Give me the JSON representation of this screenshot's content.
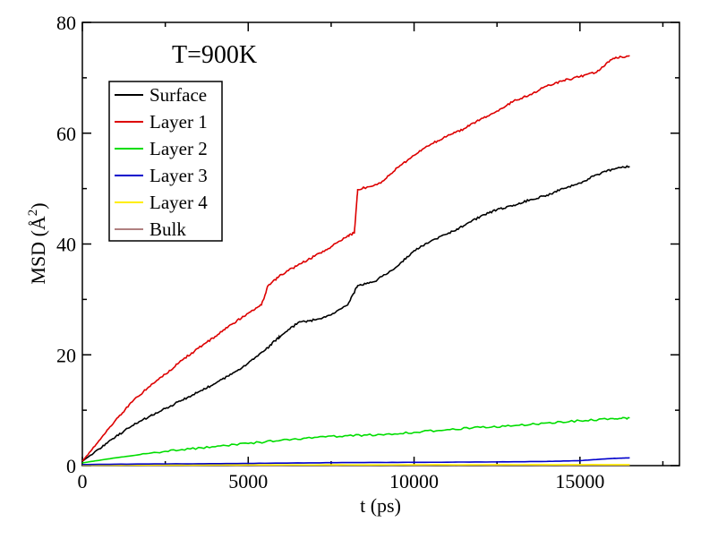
{
  "chart_data": {
    "type": "line",
    "title": "",
    "annotation": "T=900K",
    "xlabel": "t (ps)",
    "ylabel_main": "MSD (",
    "ylabel_unit": "Å",
    "ylabel_exp": "2",
    "ylabel_close": ")",
    "xlim": [
      0,
      18000
    ],
    "ylim": [
      0,
      80
    ],
    "x_ticks": [
      0,
      5000,
      10000,
      15000
    ],
    "y_ticks": [
      0,
      20,
      40,
      60,
      80
    ],
    "x_tick_labels": [
      "0",
      "5000",
      "10000",
      "15000"
    ],
    "y_tick_labels": [
      "0",
      "20",
      "40",
      "60",
      "80"
    ],
    "legend_position": "top-left",
    "series": [
      {
        "name": "Surface",
        "color": "#000000",
        "points": [
          [
            0,
            0.8
          ],
          [
            500,
            3
          ],
          [
            1000,
            5.2
          ],
          [
            1500,
            7.2
          ],
          [
            2000,
            8.8
          ],
          [
            2500,
            10.3
          ],
          [
            3000,
            11.8
          ],
          [
            3500,
            13.3
          ],
          [
            4000,
            14.8
          ],
          [
            4500,
            16.5
          ],
          [
            5000,
            18.5
          ],
          [
            5500,
            20.8
          ],
          [
            5800,
            22.5
          ],
          [
            6000,
            23.5
          ],
          [
            6500,
            25.8
          ],
          [
            7000,
            26.3
          ],
          [
            7500,
            27.2
          ],
          [
            8000,
            29
          ],
          [
            8300,
            32.5
          ],
          [
            8800,
            33.2
          ],
          [
            9500,
            36
          ],
          [
            10000,
            38.8
          ],
          [
            10500,
            40.5
          ],
          [
            11000,
            41.8
          ],
          [
            11500,
            43.3
          ],
          [
            12000,
            45
          ],
          [
            12500,
            46.2
          ],
          [
            13000,
            47
          ],
          [
            13500,
            48
          ],
          [
            14000,
            48.8
          ],
          [
            14500,
            50
          ],
          [
            15000,
            51
          ],
          [
            15500,
            52.5
          ],
          [
            16000,
            53.5
          ],
          [
            16500,
            54
          ]
        ]
      },
      {
        "name": "Layer 1",
        "color": "#dd0000",
        "points": [
          [
            0,
            0.8
          ],
          [
            500,
            4.5
          ],
          [
            1000,
            8.2
          ],
          [
            1500,
            11.5
          ],
          [
            2000,
            14.2
          ],
          [
            2500,
            16.5
          ],
          [
            3000,
            19
          ],
          [
            3500,
            21.2
          ],
          [
            4000,
            23.3
          ],
          [
            4500,
            25.5
          ],
          [
            5000,
            27.5
          ],
          [
            5400,
            29
          ],
          [
            5600,
            32.5
          ],
          [
            6000,
            34.5
          ],
          [
            6500,
            36.2
          ],
          [
            7000,
            37.8
          ],
          [
            7500,
            39.5
          ],
          [
            8000,
            41.5
          ],
          [
            8200,
            42
          ],
          [
            8300,
            49.8
          ],
          [
            9000,
            51
          ],
          [
            9500,
            53.8
          ],
          [
            10000,
            56
          ],
          [
            10500,
            58
          ],
          [
            11000,
            59.5
          ],
          [
            11500,
            60.8
          ],
          [
            12000,
            62.5
          ],
          [
            12500,
            64
          ],
          [
            13000,
            65.8
          ],
          [
            13500,
            67
          ],
          [
            14000,
            68.5
          ],
          [
            14500,
            69.5
          ],
          [
            15000,
            70.2
          ],
          [
            15500,
            71
          ],
          [
            16000,
            73.5
          ],
          [
            16500,
            74
          ]
        ]
      },
      {
        "name": "Layer 2",
        "color": "#00dd00",
        "points": [
          [
            0,
            0.5
          ],
          [
            1000,
            1.4
          ],
          [
            2000,
            2.2
          ],
          [
            3000,
            2.9
          ],
          [
            4000,
            3.4
          ],
          [
            5000,
            4
          ],
          [
            6000,
            4.6
          ],
          [
            7000,
            5.1
          ],
          [
            8000,
            5.4
          ],
          [
            9000,
            5.6
          ],
          [
            10000,
            6
          ],
          [
            11000,
            6.5
          ],
          [
            12000,
            6.9
          ],
          [
            13000,
            7.2
          ],
          [
            14000,
            7.7
          ],
          [
            15000,
            8.1
          ],
          [
            16000,
            8.5
          ],
          [
            16500,
            8.6
          ]
        ]
      },
      {
        "name": "Layer 3",
        "color": "#0000cc",
        "points": [
          [
            0,
            0.2
          ],
          [
            2000,
            0.3
          ],
          [
            4000,
            0.35
          ],
          [
            6000,
            0.45
          ],
          [
            8000,
            0.55
          ],
          [
            10000,
            0.6
          ],
          [
            12000,
            0.65
          ],
          [
            14000,
            0.75
          ],
          [
            15000,
            0.9
          ],
          [
            16000,
            1.3
          ],
          [
            16500,
            1.4
          ]
        ]
      },
      {
        "name": "Layer 4",
        "color": "#ffee00",
        "points": [
          [
            0,
            0.1
          ],
          [
            4000,
            0.12
          ],
          [
            8000,
            0.14
          ],
          [
            12000,
            0.16
          ],
          [
            16500,
            0.18
          ]
        ]
      },
      {
        "name": "Bulk",
        "color": "#b08080",
        "points": [
          [
            0,
            0.05
          ],
          [
            4000,
            0.06
          ],
          [
            8000,
            0.07
          ],
          [
            12000,
            0.08
          ],
          [
            16500,
            0.09
          ]
        ]
      }
    ]
  }
}
